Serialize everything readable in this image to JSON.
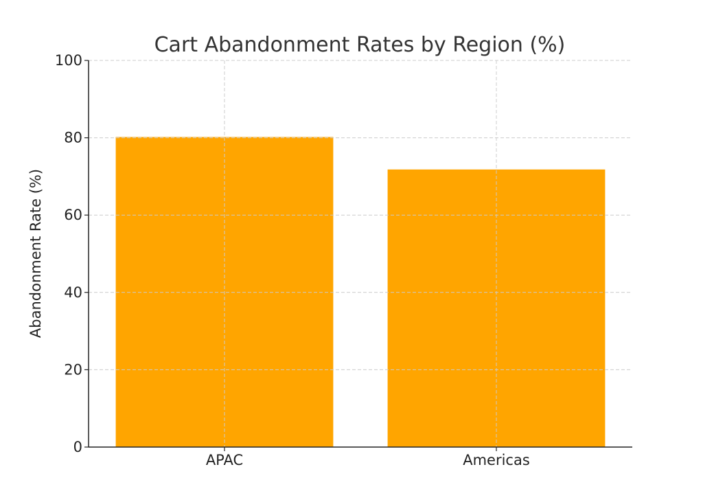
{
  "chart_data": {
    "type": "bar",
    "title": "Cart Abandonment Rates by Region (%)",
    "xlabel": "",
    "ylabel": "Abandonment Rate (%)",
    "categories": [
      "APAC",
      "Americas"
    ],
    "values": [
      80.2,
      71.8
    ],
    "ylim": [
      0,
      100
    ],
    "yticks": [
      0,
      20,
      40,
      60,
      80,
      100
    ],
    "grid": true,
    "bar_color": "#ffa500",
    "grid_color": "#cccccc",
    "axis_color": "#222222"
  }
}
